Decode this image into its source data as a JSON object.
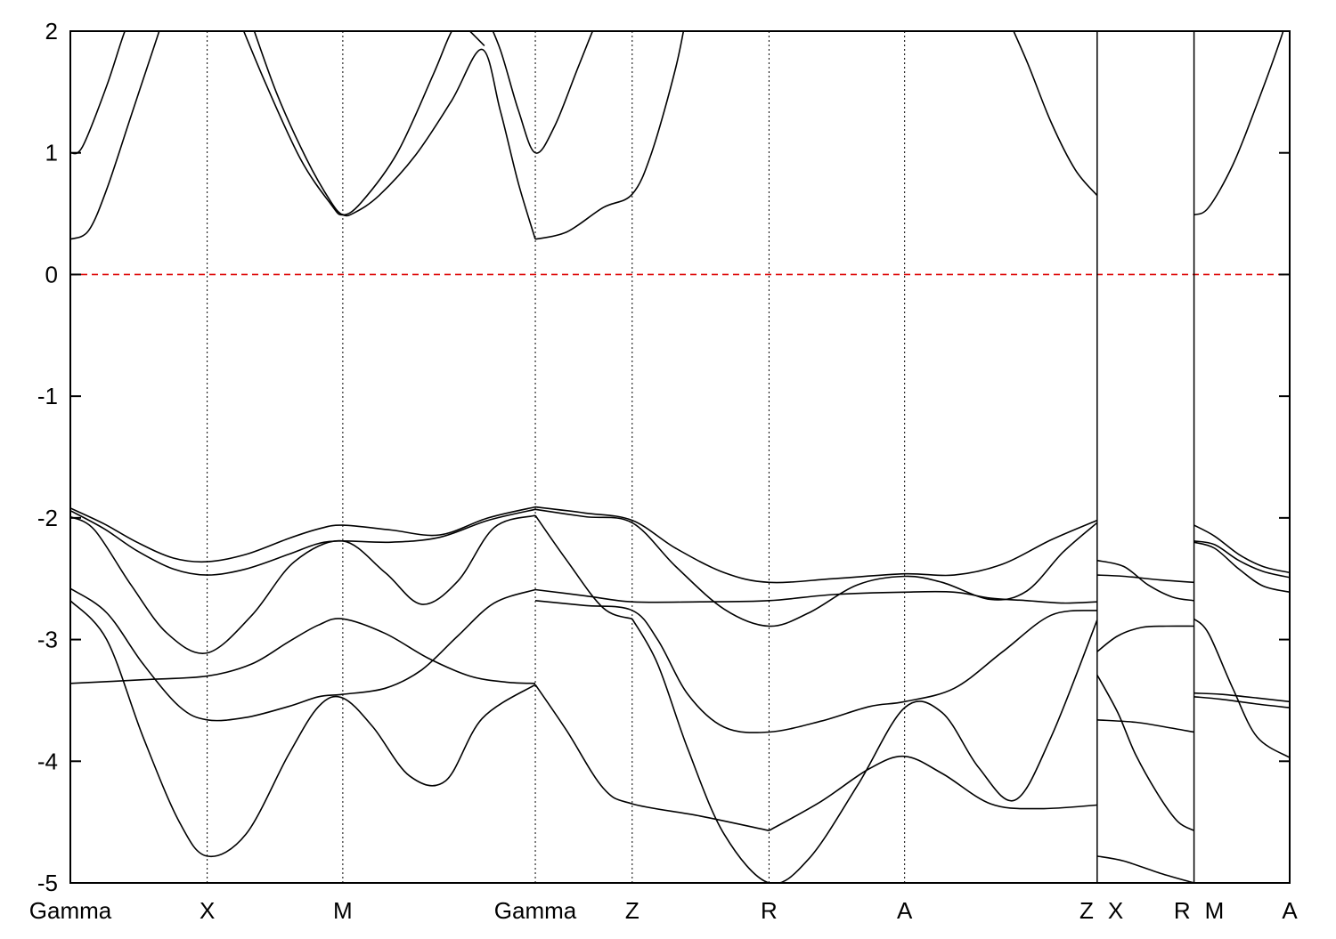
{
  "chart_data": {
    "type": "line",
    "title": "",
    "xlabel": "",
    "ylabel": "",
    "ylim": [
      -5,
      2
    ],
    "y_ticks": [
      "2",
      "1",
      "0",
      "-1",
      "-2",
      "-3",
      "-4",
      "-5"
    ],
    "y_tick_values": [
      2,
      1,
      0,
      -1,
      -2,
      -3,
      -4,
      -5
    ],
    "xlim": [
      0,
      10.07
    ],
    "k_points": [
      {
        "label": "Gamma",
        "x": 0.0
      },
      {
        "label": "X",
        "x": 1.13
      },
      {
        "label": "M",
        "x": 2.25
      },
      {
        "label": "Gamma",
        "x": 3.84
      },
      {
        "label": "Z",
        "x": 4.64
      },
      {
        "label": "R",
        "x": 5.77
      },
      {
        "label": "A",
        "x": 6.89
      },
      {
        "label": "Z",
        "x": 8.48
      },
      {
        "label": "X",
        "x": 8.48
      },
      {
        "label": "R",
        "x": 9.28
      },
      {
        "label": "M",
        "x": 9.28
      },
      {
        "label": "A",
        "x": 10.07
      }
    ],
    "segment_breaks": [
      8.48,
      9.28
    ],
    "fermi_level": 0,
    "fermi_color": "#dd0000",
    "line_color": "#000000",
    "grid": "vertical lines at high-symmetry points (dotted)",
    "legend": "none",
    "series": [
      {
        "x": [
          0,
          0.28,
          0.55,
          0.85,
          1.13,
          1.45,
          1.8,
          2.05,
          2.25,
          2.65,
          3.05,
          3.45,
          3.84
        ],
        "values": [
          -1.92,
          -2.05,
          -2.2,
          -2.33,
          -2.36,
          -2.3,
          -2.17,
          -2.09,
          -2.06,
          -2.1,
          -2.14,
          -2.0,
          -1.91
        ]
      },
      {
        "x": [
          3.84,
          4.25,
          4.64,
          5.0,
          5.4,
          5.77,
          6.3,
          6.89,
          7.3,
          7.7,
          8.1,
          8.48
        ],
        "values": [
          -1.91,
          -1.96,
          -2.02,
          -2.25,
          -2.45,
          -2.53,
          -2.5,
          -2.46,
          -2.47,
          -2.38,
          -2.18,
          -2.02
        ]
      },
      {
        "x": [
          0,
          0.28,
          0.55,
          0.85,
          1.13,
          1.45,
          1.8,
          2.05,
          2.25,
          2.65,
          3.05,
          3.45,
          3.84
        ],
        "values": [
          -1.94,
          -2.09,
          -2.27,
          -2.42,
          -2.47,
          -2.42,
          -2.3,
          -2.21,
          -2.19,
          -2.2,
          -2.16,
          -2.02,
          -1.93
        ]
      },
      {
        "x": [
          3.84,
          4.25,
          4.64,
          5.0,
          5.4,
          5.77,
          6.1,
          6.5,
          6.89,
          7.2,
          7.6,
          7.9,
          8.2,
          8.48
        ],
        "values": [
          -1.93,
          -1.99,
          -2.04,
          -2.4,
          -2.75,
          -2.89,
          -2.78,
          -2.55,
          -2.48,
          -2.53,
          -2.67,
          -2.6,
          -2.28,
          -2.04
        ]
      },
      {
        "x": [
          0,
          0.2,
          0.5,
          0.8,
          1.13,
          1.5,
          1.85,
          2.25,
          2.6,
          2.9,
          3.2,
          3.5,
          3.84
        ],
        "values": [
          -1.99,
          -2.1,
          -2.55,
          -2.95,
          -3.11,
          -2.8,
          -2.36,
          -2.19,
          -2.45,
          -2.71,
          -2.52,
          -2.08,
          -1.98
        ]
      },
      {
        "x": [
          3.84,
          4.1,
          4.4,
          4.64
        ],
        "values": [
          -1.98,
          -2.35,
          -2.74,
          -2.83
        ]
      },
      {
        "x": [
          0,
          0.3,
          0.6,
          0.9,
          1.13,
          1.45,
          1.8,
          2.05,
          2.25,
          2.6,
          2.9,
          3.2,
          3.5,
          3.84
        ],
        "values": [
          -2.58,
          -2.78,
          -3.2,
          -3.55,
          -3.66,
          -3.64,
          -3.55,
          -3.47,
          -3.45,
          -3.4,
          -3.25,
          -2.97,
          -2.7,
          -2.59
        ]
      },
      {
        "x": [
          3.84,
          4.25,
          4.64,
          5.2,
          5.77,
          6.3,
          6.89,
          7.3,
          7.6,
          7.9,
          8.2,
          8.48
        ],
        "values": [
          -2.59,
          -2.64,
          -2.69,
          -2.69,
          -2.68,
          -2.63,
          -2.61,
          -2.61,
          -2.66,
          -2.68,
          -2.7,
          -2.69
        ]
      },
      {
        "x": [
          0,
          0.3,
          0.6,
          0.9,
          1.13,
          1.45,
          1.8,
          2.05,
          2.25,
          2.5,
          2.8,
          3.1,
          3.4,
          3.84
        ],
        "values": [
          -2.68,
          -3.0,
          -3.8,
          -4.5,
          -4.78,
          -4.6,
          -3.95,
          -3.55,
          -3.48,
          -3.72,
          -4.12,
          -4.16,
          -3.65,
          -3.37
        ]
      },
      {
        "x": [
          0,
          0.6,
          1.13,
          1.5,
          1.8,
          2.05,
          2.25,
          2.6,
          2.95,
          3.3,
          3.6,
          3.84
        ],
        "values": [
          -3.36,
          -3.33,
          -3.3,
          -3.2,
          -3.02,
          -2.88,
          -2.83,
          -2.95,
          -3.15,
          -3.3,
          -3.35,
          -3.36
        ]
      },
      {
        "x": [
          3.84,
          4.1,
          4.4,
          4.64,
          5.2,
          5.77
        ],
        "values": [
          -3.37,
          -3.75,
          -4.22,
          -4.35,
          -4.45,
          -4.57
        ]
      },
      {
        "x": [
          3.84,
          4.25,
          4.64,
          4.85,
          5.1,
          5.4,
          5.77,
          6.2,
          6.6,
          6.89,
          7.3,
          7.7,
          8.1,
          8.48
        ],
        "values": [
          -2.68,
          -2.72,
          -2.76,
          -3.0,
          -3.45,
          -3.72,
          -3.76,
          -3.67,
          -3.55,
          -3.51,
          -3.4,
          -3.1,
          -2.8,
          -2.76
        ]
      },
      {
        "x": [
          4.64,
          4.85,
          5.1,
          5.4,
          5.77,
          6.1,
          6.5,
          6.89,
          7.2,
          7.5,
          7.8,
          8.1,
          8.48
        ],
        "values": [
          -2.83,
          -3.2,
          -3.9,
          -4.6,
          -5.0,
          -4.8,
          -4.2,
          -3.56,
          -3.6,
          -4.05,
          -4.32,
          -3.8,
          -2.84
        ]
      },
      {
        "x": [
          5.77,
          6.2,
          6.6,
          6.89,
          7.2,
          7.6,
          8.0,
          8.48
        ],
        "values": [
          -4.57,
          -4.33,
          -4.06,
          -3.96,
          -4.1,
          -4.35,
          -4.39,
          -4.36
        ]
      },
      {
        "x": [
          8.48,
          8.7,
          8.9,
          9.1,
          9.28
        ],
        "values": [
          -2.35,
          -2.4,
          -2.55,
          -2.65,
          -2.68
        ]
      },
      {
        "x": [
          8.48,
          8.7,
          9.0,
          9.28
        ],
        "values": [
          -2.47,
          -2.48,
          -2.51,
          -2.53
        ]
      },
      {
        "x": [
          8.48,
          8.65,
          8.85,
          9.05,
          9.28
        ],
        "values": [
          -3.1,
          -2.97,
          -2.9,
          -2.89,
          -2.89
        ]
      },
      {
        "x": [
          8.48,
          8.65,
          8.8,
          9.0,
          9.15,
          9.28
        ],
        "values": [
          -3.29,
          -3.6,
          -3.95,
          -4.3,
          -4.5,
          -4.57
        ]
      },
      {
        "x": [
          8.48,
          8.8,
          9.05,
          9.28
        ],
        "values": [
          -3.66,
          -3.68,
          -3.72,
          -3.76
        ]
      },
      {
        "x": [
          8.48,
          8.7,
          9.0,
          9.28
        ],
        "values": [
          -4.78,
          -4.82,
          -4.92,
          -5.0
        ]
      },
      {
        "x": [
          9.28,
          9.45,
          9.65,
          9.85,
          10.07
        ],
        "values": [
          -2.06,
          -2.15,
          -2.3,
          -2.4,
          -2.45
        ]
      },
      {
        "x": [
          9.28,
          9.45,
          9.65,
          9.85,
          10.07
        ],
        "values": [
          -2.19,
          -2.22,
          -2.35,
          -2.44,
          -2.49
        ]
      },
      {
        "x": [
          9.28,
          9.45,
          9.65,
          9.85,
          10.07
        ],
        "values": [
          -2.2,
          -2.25,
          -2.42,
          -2.56,
          -2.61
        ]
      },
      {
        "x": [
          9.28,
          9.4,
          9.6,
          9.8,
          10.07
        ],
        "values": [
          -2.83,
          -2.95,
          -3.4,
          -3.8,
          -3.97
        ]
      },
      {
        "x": [
          9.28,
          9.5,
          9.8,
          10.07
        ],
        "values": [
          -3.44,
          -3.45,
          -3.48,
          -3.51
        ]
      },
      {
        "x": [
          9.28,
          9.5,
          9.8,
          10.07
        ],
        "values": [
          -3.47,
          -3.49,
          -3.53,
          -3.56
        ]
      },
      {
        "x": [
          0,
          0.1,
          0.3,
          0.45,
          0.55
        ],
        "values": [
          1.0,
          1.05,
          1.55,
          2.0,
          2.2
        ]
      },
      {
        "x": [
          0,
          0.15,
          0.3,
          0.5,
          0.7,
          0.8
        ],
        "values": [
          0.29,
          0.36,
          0.7,
          1.3,
          1.9,
          2.2
        ]
      },
      {
        "x": [
          1.35,
          1.6,
          1.9,
          2.15,
          2.25,
          2.4,
          2.7,
          3.0,
          3.15,
          3.3
        ],
        "values": [
          2.2,
          1.6,
          0.95,
          0.58,
          0.49,
          0.59,
          1.0,
          1.65,
          2.0,
          2.2
        ]
      },
      {
        "x": [
          1.45,
          1.7,
          1.95,
          2.15,
          2.25,
          2.35,
          2.55,
          2.85,
          3.15,
          3.4,
          3.55,
          3.7,
          3.84
        ],
        "values": [
          2.2,
          1.5,
          0.95,
          0.6,
          0.49,
          0.51,
          0.65,
          0.98,
          1.43,
          1.85,
          1.35,
          0.75,
          0.29
        ]
      },
      {
        "x": [
          3.3,
          3.42
        ],
        "values": [
          2.0,
          1.88
        ]
      },
      {
        "x": [
          3.84,
          4.1,
          4.4,
          4.64,
          4.8,
          5.0,
          5.1
        ],
        "values": [
          0.29,
          0.35,
          0.55,
          0.66,
          1.0,
          1.7,
          2.2
        ]
      },
      {
        "x": [
          3.4,
          3.55,
          3.7,
          3.84,
          4.0,
          4.2,
          4.4,
          4.5
        ],
        "values": [
          2.2,
          1.85,
          1.35,
          1.0,
          1.22,
          1.72,
          2.2,
          2.3
        ]
      },
      {
        "x": [
          7.7,
          7.9,
          8.1,
          8.3,
          8.48
        ],
        "values": [
          2.2,
          1.75,
          1.25,
          0.86,
          0.65
        ]
      },
      {
        "x": [
          9.28,
          9.4,
          9.6,
          9.8,
          10.0,
          10.07
        ],
        "values": [
          0.49,
          0.55,
          0.9,
          1.4,
          1.95,
          2.2
        ]
      }
    ]
  }
}
